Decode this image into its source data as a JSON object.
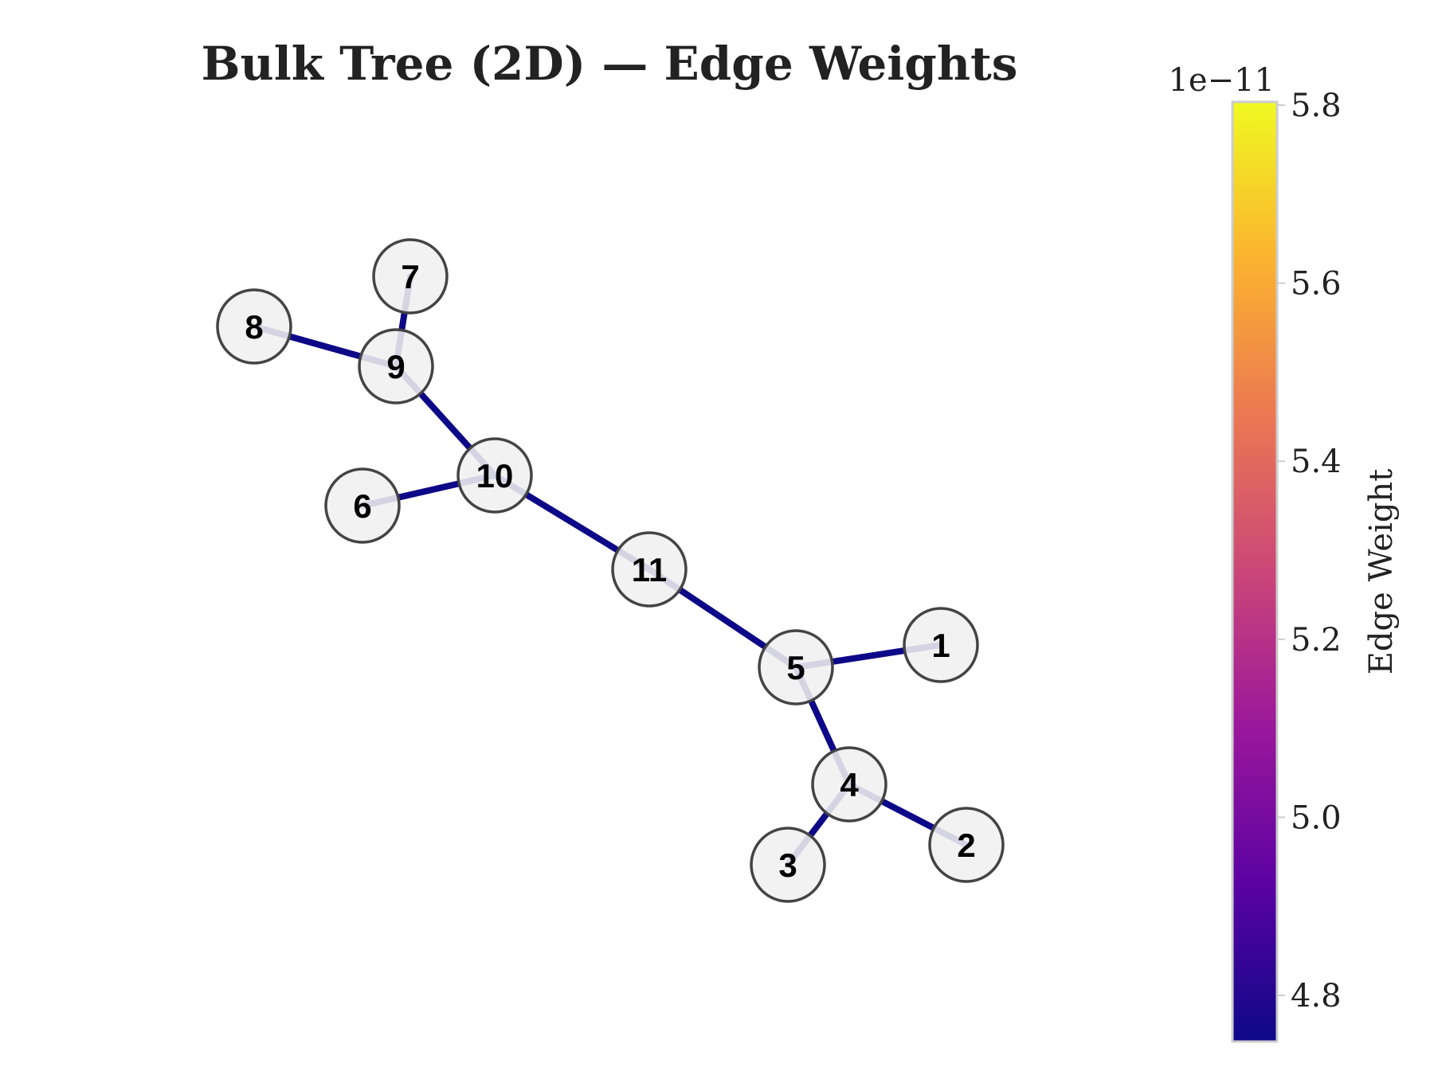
{
  "title": "Bulk Tree (2D) — Edge Weights",
  "colorbar": {
    "label": "Edge Weight",
    "offset_text": "1e−11",
    "ticks": [
      "4.8",
      "5.0",
      "5.2",
      "5.4",
      "5.6",
      "5.8"
    ],
    "colormap": [
      "#0d0887",
      "#5b02a3",
      "#9a179b",
      "#cb4678",
      "#eb7852",
      "#fbb32f",
      "#f0f921"
    ]
  },
  "graph": {
    "nodes": [
      "1",
      "2",
      "3",
      "4",
      "5",
      "6",
      "7",
      "8",
      "9",
      "10",
      "11"
    ],
    "edges": [
      [
        "8",
        "9"
      ],
      [
        "7",
        "9"
      ],
      [
        "9",
        "10"
      ],
      [
        "6",
        "10"
      ],
      [
        "10",
        "11"
      ],
      [
        "11",
        "5"
      ],
      [
        "5",
        "1"
      ],
      [
        "5",
        "4"
      ],
      [
        "4",
        "3"
      ],
      [
        "4",
        "2"
      ]
    ],
    "edge_color": "#0d0887",
    "node_fill": "#f0f0f0",
    "node_stroke": "#444444"
  }
}
